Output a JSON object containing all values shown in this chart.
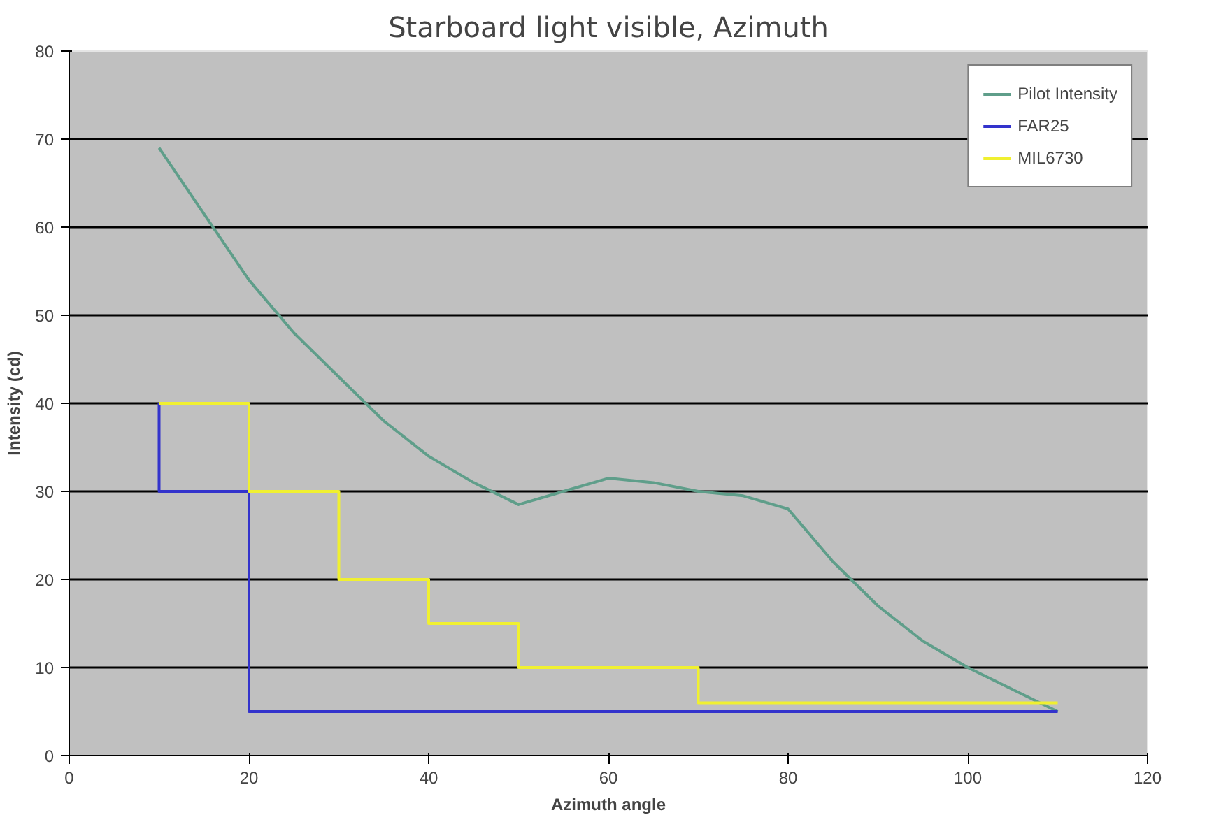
{
  "chart_data": {
    "type": "line",
    "title": "Starboard light visible, Azimuth",
    "xlabel": "Azimuth angle",
    "ylabel": "Intensity (cd)",
    "xlim": [
      0,
      120
    ],
    "xticks": [
      0,
      20,
      40,
      60,
      80,
      100,
      120
    ],
    "ylim": [
      0,
      80
    ],
    "yticks": [
      0,
      10,
      20,
      30,
      40,
      50,
      60,
      70,
      80
    ],
    "grid": "y",
    "legend": "top right",
    "marker": "none",
    "line_style": "solid",
    "series": [
      {
        "name": "Pilot Intensity",
        "color": "#5f9e8a",
        "x": [
          10,
          15,
          20,
          25,
          30,
          35,
          40,
          45,
          50,
          55,
          60,
          65,
          70,
          75,
          80,
          85,
          90,
          95,
          100,
          105,
          110
        ],
        "values": [
          69,
          61.5,
          54,
          48,
          43,
          38,
          34,
          31,
          28.5,
          30,
          31.5,
          31,
          30,
          29.5,
          28,
          22,
          17,
          13,
          10,
          7.5,
          5
        ]
      },
      {
        "name": "FAR25",
        "color": "#3333cc",
        "x": [
          10,
          10,
          20,
          20,
          110
        ],
        "values": [
          40,
          30,
          30,
          5,
          5
        ]
      },
      {
        "name": "MIL6730",
        "color": "#f0f030",
        "x": [
          10,
          20,
          20,
          30,
          30,
          40,
          40,
          50,
          50,
          70,
          70,
          110
        ],
        "values": [
          40,
          40,
          30,
          30,
          20,
          20,
          15,
          15,
          10,
          10,
          6,
          6
        ]
      }
    ]
  }
}
